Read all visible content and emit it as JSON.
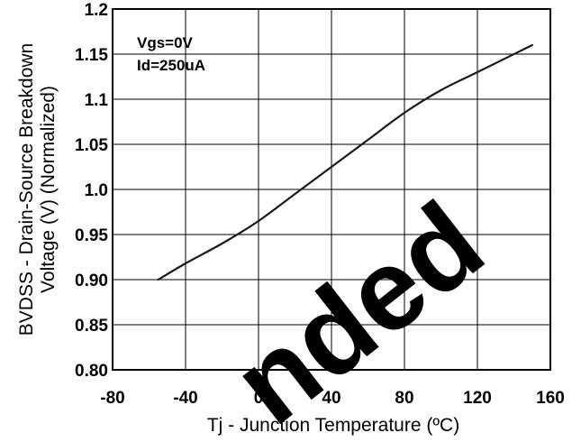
{
  "chart_data": {
    "type": "line",
    "title": "",
    "xlabel": "Tj - Junction Temperature (ºC)",
    "ylabel_line1": "BVDSS - Drain-Source Breakdown",
    "ylabel_line2": "Voltage (V) (Normalized)",
    "xlim": [
      -80,
      160
    ],
    "ylim": [
      0.8,
      1.2
    ],
    "x_ticks": [
      -80,
      -40,
      0,
      40,
      80,
      120,
      160
    ],
    "x_tick_labels": [
      "-80",
      "-40",
      "0",
      "40",
      "80",
      "120",
      "160"
    ],
    "y_ticks": [
      0.8,
      0.85,
      0.9,
      0.95,
      1.0,
      1.05,
      1.1,
      1.15,
      1.2
    ],
    "y_tick_labels": [
      "0.80",
      "0.85",
      "0.90",
      "0.95",
      "1.0",
      "1.05",
      "1.1",
      "1.15",
      "1.2"
    ],
    "grid": true,
    "annotations": [
      "Vgs=0V",
      "Id=250uA"
    ],
    "series": [
      {
        "x": [
          -55,
          -40,
          -20,
          0,
          20,
          40,
          60,
          80,
          100,
          120,
          150
        ],
        "y": [
          0.9,
          0.918,
          0.94,
          0.965,
          0.995,
          1.025,
          1.055,
          1.085,
          1.11,
          1.13,
          1.16
        ]
      }
    ],
    "colors": {
      "line": "#1a1a1a",
      "grid": "#000000",
      "frame": "#000000"
    }
  },
  "watermark": {
    "text": "nded",
    "color": "#000000"
  }
}
